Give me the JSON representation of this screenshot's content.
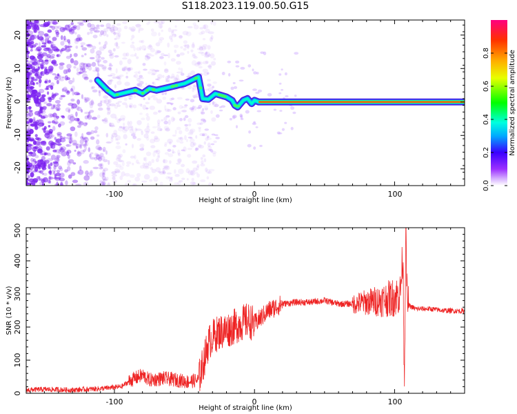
{
  "title": "S118.2023.119.00.50.G15",
  "colors": {
    "snr_line": "#ee2222",
    "ridge_core": "#ee2020",
    "scatter": "#7a1ff0"
  },
  "chart_data": [
    {
      "type": "heatmap",
      "xlabel": "Height of straight line (km)",
      "ylabel": "Frequency (Hz)",
      "xlim": [
        -163,
        150
      ],
      "ylim": [
        -25,
        24.5
      ],
      "xticks": [
        -100,
        0,
        100
      ],
      "xtick_labels": [
        "-100",
        "0",
        "100"
      ],
      "yticks": [
        -20,
        -10,
        0,
        10,
        20
      ],
      "ytick_labels": [
        "-20",
        "-10",
        "0",
        "10",
        "20"
      ],
      "ridge": {
        "x": [
          -112,
          -105,
          -100,
          -95,
          -90,
          -85,
          -80,
          -75,
          -70,
          -65,
          -60,
          -55,
          -50,
          -45,
          -40,
          -37,
          -33,
          -28,
          -24,
          -20,
          -16,
          -14,
          -12,
          -10,
          -8,
          -5,
          -2,
          0,
          3,
          150
        ],
        "y": [
          6.5,
          3.5,
          2.0,
          2.5,
          3.0,
          3.5,
          2.5,
          4.0,
          3.5,
          4.0,
          4.5,
          5.0,
          5.5,
          6.5,
          7.5,
          1.0,
          0.8,
          2.5,
          2.0,
          1.5,
          0.5,
          -1.0,
          -1.5,
          -0.5,
          0.5,
          1.0,
          -0.5,
          0.5,
          0.0,
          0.0
        ]
      },
      "colorbar": {
        "label": "Normalized spectral amplitude",
        "range": [
          0,
          1
        ],
        "ticks": [
          0.0,
          0.2,
          0.4,
          0.6,
          0.8
        ],
        "tick_labels": [
          "0.0",
          "0.2",
          "0.4",
          "0.6",
          "0.8"
        ],
        "colormap": "rainbow (white → purple → blue → cyan → green → yellow → orange → red → magenta)"
      }
    },
    {
      "type": "line",
      "xlabel": "Height of straight line (km)",
      "ylabel": "SNR (10 * v/v)",
      "xlim": [
        -163,
        150
      ],
      "ylim": [
        0,
        500
      ],
      "xticks": [
        -100,
        0,
        100
      ],
      "xtick_labels": [
        "-100",
        "0",
        "100"
      ],
      "yticks": [
        0,
        100,
        200,
        300,
        400,
        500
      ],
      "ytick_labels": [
        "0",
        "100",
        "200",
        "300",
        "400",
        "500"
      ],
      "series": [
        {
          "x": [
            -163,
            -150,
            -130,
            -110,
            -95,
            -88,
            -80,
            -75,
            -65,
            -55,
            -48,
            -40,
            -36,
            -33,
            -30,
            -25,
            -20,
            -15,
            -10,
            -5,
            0,
            10,
            20,
            30,
            40,
            50,
            60,
            70,
            80,
            90,
            100,
            104,
            106,
            107,
            108,
            109,
            110,
            115,
            125,
            135,
            150
          ],
          "values": [
            10,
            12,
            10,
            14,
            20,
            40,
            55,
            40,
            45,
            40,
            35,
            40,
            100,
            150,
            170,
            185,
            190,
            200,
            210,
            220,
            210,
            250,
            270,
            275,
            275,
            280,
            270,
            270,
            275,
            280,
            290,
            300,
            420,
            30,
            490,
            280,
            265,
            255,
            255,
            250,
            248
          ]
        }
      ]
    }
  ]
}
